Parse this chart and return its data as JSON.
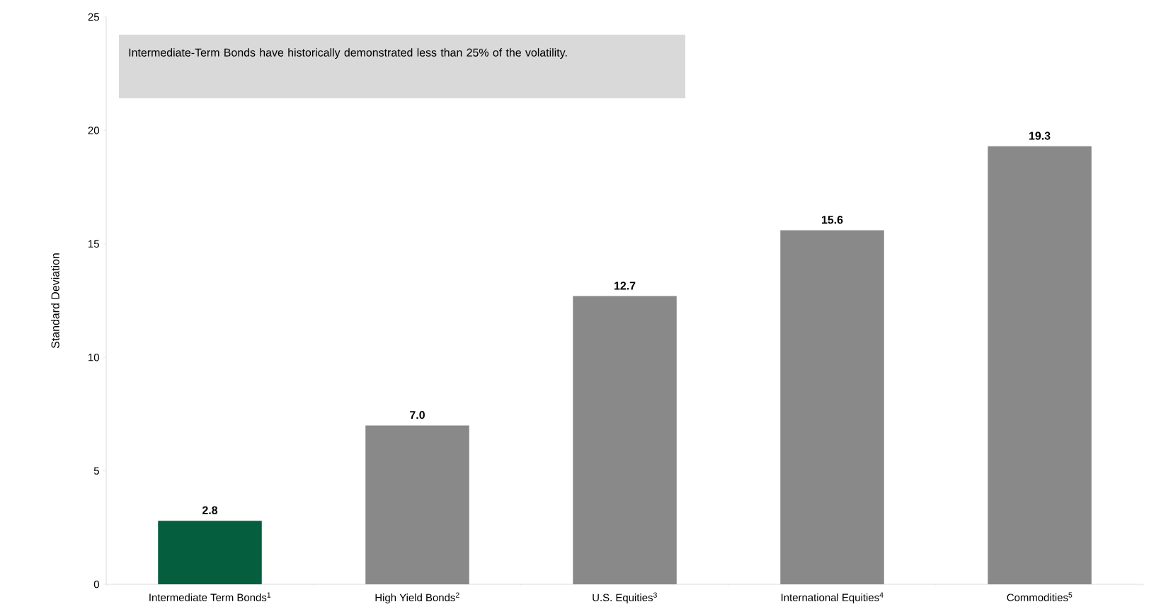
{
  "chart_data": {
    "type": "bar",
    "ylabel": "Standard Deviation",
    "categories": [
      "Intermediate Term Bonds$^{1}$",
      "High Yield Bonds$^{2}$",
      "U.S. Equities$^{3}$",
      "International Equities$^{4}$",
      "Commodities$^{5}$"
    ],
    "values": [
      2.8,
      7.0,
      12.7,
      15.6,
      19.3
    ],
    "colors": [
      "#055e3e",
      "#898989",
      "#898989",
      "#898989",
      "#898989"
    ],
    "value_labels": [
      "2.8",
      "7.0",
      "12.7",
      "15.6",
      "19.3"
    ],
    "ylim": [
      0,
      25
    ],
    "yticks": [
      0,
      5,
      10,
      15,
      20,
      25
    ],
    "grid": false,
    "annotations": [
      "Intermediate-Term Bonds have historically demonstrated less than 25% of the volatility."
    ]
  }
}
